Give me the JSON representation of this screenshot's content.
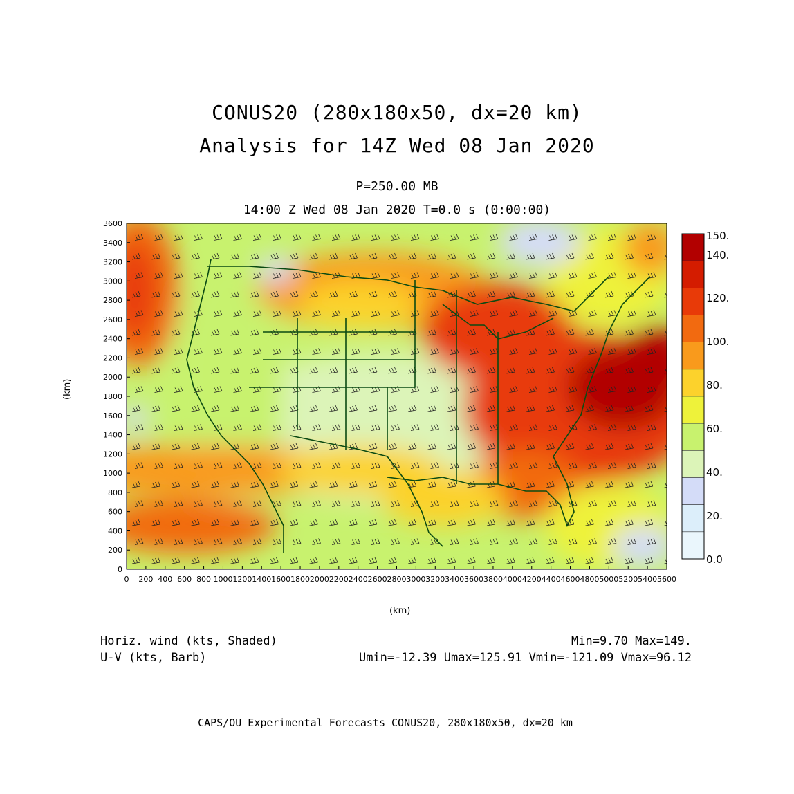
{
  "title": {
    "line1": "CONUS20 (280x180x50, dx=20 km)",
    "line2": "Analysis for 14Z Wed 08 Jan 2020"
  },
  "subtitle": {
    "level": "P=250.00 MB",
    "time": "14:00 Z Wed 08 Jan 2020    T=0.0 s (0:00:00)"
  },
  "axes": {
    "xlabel": "(km)",
    "ylabel": "(km)",
    "x_ticks": [
      "0",
      "200",
      "400",
      "600",
      "800",
      "1000",
      "1200",
      "1400",
      "1600",
      "1800",
      "2000",
      "2200",
      "2400",
      "2600",
      "2800",
      "3000",
      "3200",
      "3400",
      "3600",
      "3800",
      "4000",
      "4200",
      "4400",
      "4600",
      "4800",
      "5000",
      "5200",
      "5400",
      "5600"
    ],
    "y_ticks": [
      "0",
      "200",
      "400",
      "600",
      "800",
      "1000",
      "1200",
      "1400",
      "1600",
      "1800",
      "2000",
      "2200",
      "2400",
      "2600",
      "2800",
      "3000",
      "3200",
      "3400",
      "3600"
    ],
    "xlim": [
      0,
      5600
    ],
    "ylim": [
      0,
      3600
    ]
  },
  "colorbar": {
    "labels": [
      "150.",
      "140.",
      "120.",
      "100.",
      "80.",
      "60.",
      "40.",
      "20.",
      "0.0"
    ],
    "colors": [
      "#b20000",
      "#d41c00",
      "#e83a08",
      "#f26a10",
      "#f99a1c",
      "#fcd22c",
      "#eef23a",
      "#c8f26e",
      "#dcf4b8",
      "#d4dcf8",
      "#dceefa",
      "#eaf6fc"
    ]
  },
  "legend": {
    "shaded": "Horiz. wind (kts, Shaded)",
    "barb": "U-V (kts, Barb)",
    "minmax": "Min=9.70  Max=149.",
    "uv_stats": "Umin=-12.39  Umax=125.91  Vmin=-121.09  Vmax=96.12"
  },
  "footer": "CAPS/OU Experimental Forecasts  CONUS20, 280x180x50, dx=20 km"
}
